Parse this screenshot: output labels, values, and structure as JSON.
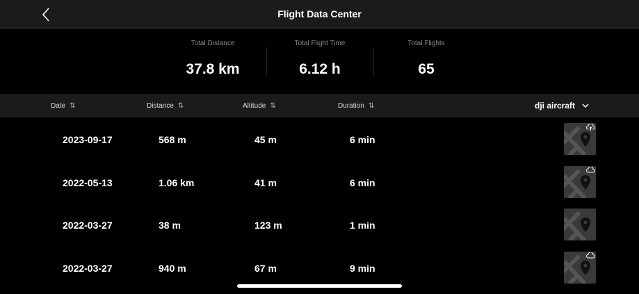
{
  "header": {
    "title": "Flight Data Center",
    "back_icon": "chevron-left-icon"
  },
  "stats": [
    {
      "label": "Total Distance",
      "value": "37.8 km"
    },
    {
      "label": "Total Flight Time",
      "value": "6.12 h"
    },
    {
      "label": "Total Flights",
      "value": "65"
    }
  ],
  "columns": {
    "date": "Date",
    "distance": "Distance",
    "altitude": "Altitude",
    "duration": "Duration",
    "sort_icon": "sort-arrows-icon"
  },
  "aircraft_filter": {
    "value": "dji aircraft",
    "icon": "chevron-down-icon"
  },
  "flights": [
    {
      "date": "2023-09-17",
      "distance": "568 m",
      "altitude": "45 m",
      "duration": "6 min",
      "cloud": "cloud-upload-icon"
    },
    {
      "date": "2022-05-13",
      "distance": "1.06 km",
      "altitude": "41 m",
      "duration": "6 min",
      "cloud": "cloud-icon"
    },
    {
      "date": "2022-03-27",
      "distance": "38 m",
      "altitude": "123 m",
      "duration": "1 min",
      "cloud": ""
    },
    {
      "date": "2022-03-27",
      "distance": "940 m",
      "altitude": "67 m",
      "duration": "9 min",
      "cloud": "cloud-icon"
    }
  ]
}
